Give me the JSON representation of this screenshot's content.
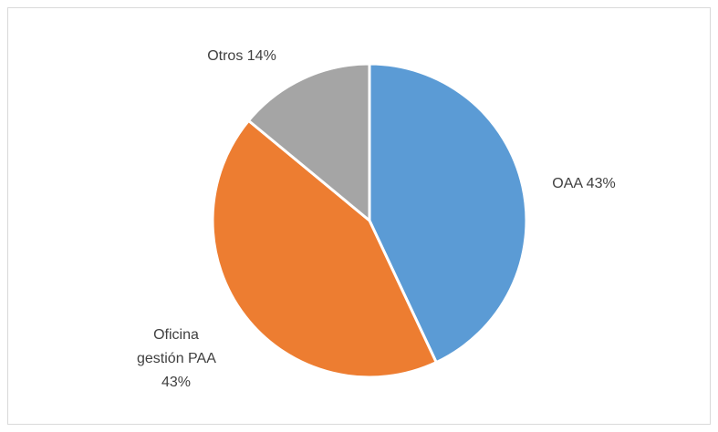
{
  "chart_data": {
    "type": "pie",
    "categories": [
      "OAA",
      "Oficina gestión PAA",
      "Otros"
    ],
    "values": [
      43,
      43,
      14
    ],
    "value_labels": [
      "43%",
      "43%",
      "14%"
    ],
    "colors": [
      "#5b9bd5",
      "#ed7d31",
      "#a5a5a5"
    ]
  }
}
